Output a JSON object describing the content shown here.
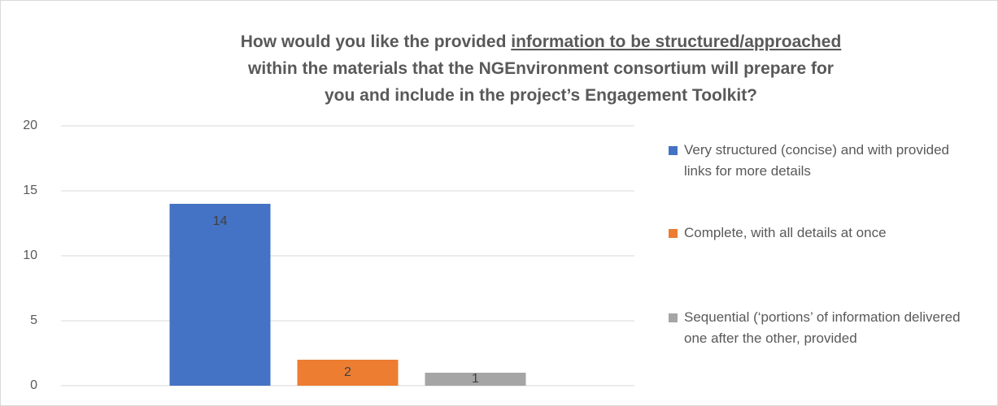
{
  "chart_data": {
    "type": "bar",
    "title": [
      [
        "How would you like the provided ",
        "information to be structured/approached"
      ],
      [
        "within the materials that the NGEnvironment consortium will prepare for"
      ],
      [
        "you and include in the project’s Engagement Toolkit?"
      ]
    ],
    "categories": [
      null
    ],
    "series": [
      {
        "name": "Very structured (concise) and with provided links for more details",
        "color": "#4472c4",
        "values": [
          14
        ]
      },
      {
        "name": "Complete, with all details at once",
        "color": "#ed7d31",
        "values": [
          2
        ]
      },
      {
        "name": "Sequential (‘portions’ of information delivered one after the other, provided",
        "color": "#a5a5a5",
        "values": [
          1
        ]
      }
    ],
    "ylim": [
      0,
      20
    ],
    "yticks": [
      0,
      5,
      10,
      15,
      20
    ],
    "grid": true,
    "legend": "right"
  }
}
